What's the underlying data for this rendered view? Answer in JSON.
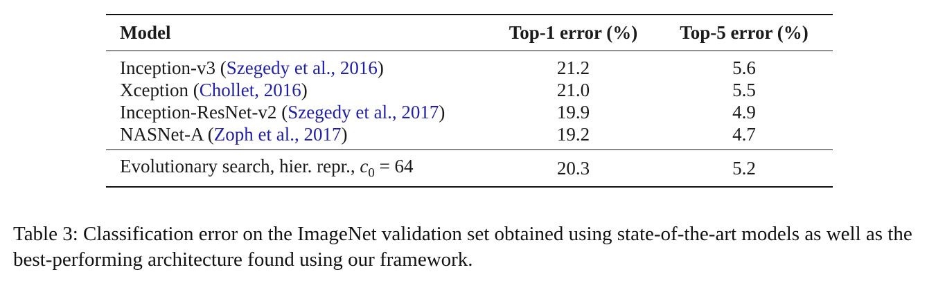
{
  "table": {
    "headers": [
      "Model",
      "Top-1 error (%)",
      "Top-5 error (%)"
    ],
    "rows": [
      {
        "model": "Inception-v3",
        "cite_open": " (",
        "cite": "Szegedy et al., 2016",
        "cite_close": ")",
        "top1": "21.2",
        "top5": "5.6"
      },
      {
        "model": "Xception",
        "cite_open": " (",
        "cite": "Chollet, 2016",
        "cite_close": ")",
        "top1": "21.0",
        "top5": "5.5"
      },
      {
        "model": "Inception-ResNet-v2",
        "cite_open": " (",
        "cite": "Szegedy et al., 2017",
        "cite_close": ")",
        "top1": "19.9",
        "top5": "4.9"
      },
      {
        "model": "NASNet-A",
        "cite_open": " (",
        "cite": "Zoph et al., 2017",
        "cite_close": ")",
        "top1": "19.2",
        "top5": "4.7"
      }
    ],
    "ours": {
      "model": "Evolutionary search, hier. repr., ",
      "math_var": "c",
      "math_sub": "0",
      "math_rest": " = 64",
      "top1": "20.3",
      "top5": "5.2"
    }
  },
  "caption": "Table 3: Classification error on the ImageNet validation set obtained using state-of-the-art models as well as the best-performing architecture found using our framework."
}
